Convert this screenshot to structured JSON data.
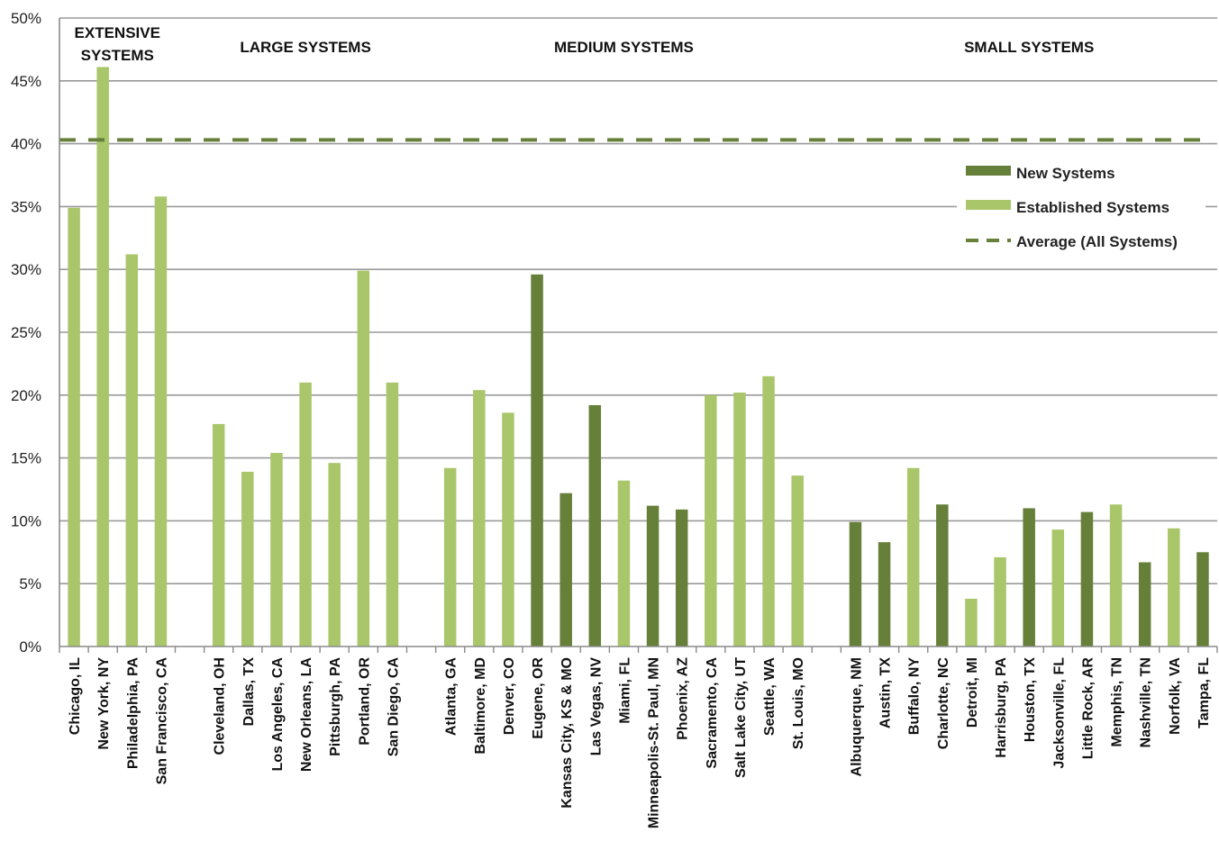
{
  "chart_data": {
    "type": "bar",
    "ylim": [
      0,
      0.5
    ],
    "yticks": [
      "0%",
      "5%",
      "10%",
      "15%",
      "20%",
      "25%",
      "30%",
      "35%",
      "40%",
      "45%",
      "50%"
    ],
    "groups": [
      {
        "label": "EXTENSIVE SYSTEMS",
        "label_lines": [
          "EXTENSIVE",
          "SYSTEMS"
        ]
      },
      {
        "label": "LARGE SYSTEMS",
        "label_lines": [
          "LARGE SYSTEMS"
        ]
      },
      {
        "label": "MEDIUM SYSTEMS",
        "label_lines": [
          "MEDIUM SYSTEMS"
        ]
      },
      {
        "label": "SMALL SYSTEMS",
        "label_lines": [
          "SMALL SYSTEMS"
        ]
      }
    ],
    "categories": [
      "Chicago, IL",
      "New York, NY",
      "Philadelphia, PA",
      "San Francisco, CA",
      "Cleveland, OH",
      "Dallas, TX",
      "Los Angeles, CA",
      "New Orleans, LA",
      "Pittsburgh, PA",
      "Portland, OR",
      "San Diego, CA",
      "Atlanta, GA",
      "Baltimore, MD",
      "Denver, CO",
      "Eugene, OR",
      "Kansas City, KS & MO",
      "Las Vegas, NV",
      "Miami, FL",
      "Minneapolis-St. Paul, MN",
      "Phoenix, AZ",
      "Sacramento, CA",
      "Salt Lake City, UT",
      "Seattle, WA",
      "St. Louis, MO",
      "Albuquerque, NM",
      "Austin, TX",
      "Buffalo, NY",
      "Charlotte, NC",
      "Detroit, MI",
      "Harrisburg, PA",
      "Houston, TX",
      "Jacksonville, FL",
      "Little Rock, AR",
      "Memphis, TN",
      "Nashville, TN",
      "Norfolk, VA",
      "Tampa, FL"
    ],
    "category_group": [
      0,
      0,
      0,
      0,
      1,
      1,
      1,
      1,
      1,
      1,
      1,
      2,
      2,
      2,
      2,
      2,
      2,
      2,
      2,
      2,
      2,
      2,
      2,
      2,
      3,
      3,
      3,
      3,
      3,
      3,
      3,
      3,
      3,
      3,
      3,
      3,
      3
    ],
    "values": [
      0.349,
      0.461,
      0.312,
      0.358,
      0.177,
      0.139,
      0.154,
      0.21,
      0.146,
      0.299,
      0.21,
      0.142,
      0.204,
      0.186,
      0.296,
      0.122,
      0.192,
      0.132,
      0.112,
      0.109,
      0.2,
      0.202,
      0.215,
      0.136,
      0.099,
      0.083,
      0.142,
      0.113,
      0.038,
      0.071,
      0.11,
      0.093,
      0.107,
      0.113,
      0.067,
      0.094,
      0.075
    ],
    "system_type": [
      "established",
      "established",
      "established",
      "established",
      "established",
      "established",
      "established",
      "established",
      "established",
      "established",
      "established",
      "established",
      "established",
      "established",
      "new",
      "new",
      "new",
      "established",
      "new",
      "new",
      "established",
      "established",
      "established",
      "established",
      "new",
      "new",
      "established",
      "new",
      "established",
      "established",
      "new",
      "established",
      "new",
      "established",
      "new",
      "established",
      "new"
    ],
    "average": 0.403,
    "legend": {
      "new": "New Systems",
      "established": "Established Systems",
      "average": "Average (All Systems)"
    },
    "legend_position": "right",
    "grid": true,
    "colors": {
      "new": "#66803a",
      "established": "#a9c66a",
      "average": "#66803a",
      "grid": "#9a9a9a"
    }
  }
}
